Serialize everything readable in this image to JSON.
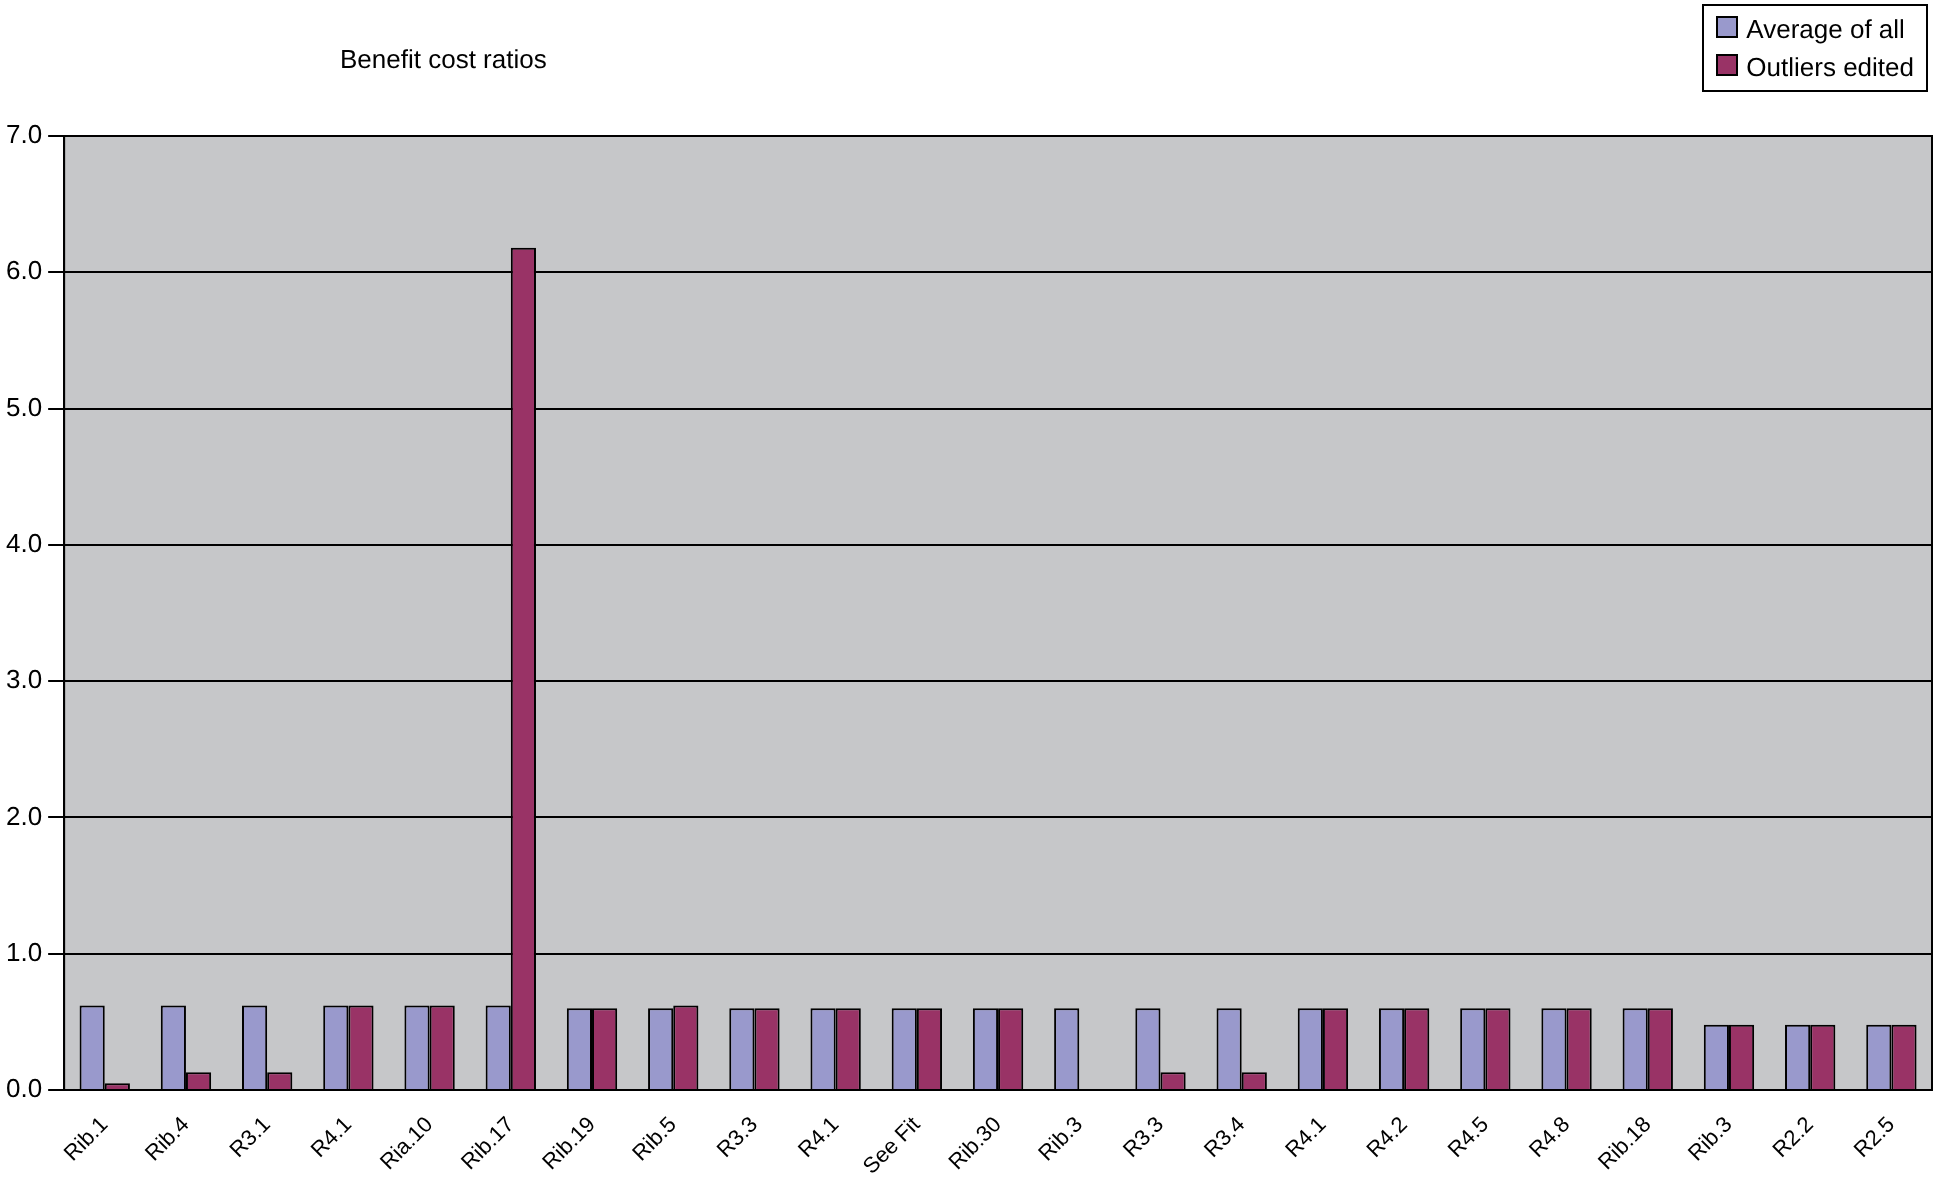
{
  "chart_data": {
    "type": "bar",
    "title": "Benefit cost ratios",
    "categories": [
      "Rib.1",
      "Rib.4",
      "R3.1",
      "R4.1",
      "Ria.10",
      "Rib.17",
      "Rib.19",
      "Rib.5",
      "R3.3",
      "R4.1",
      "See Fit",
      "Rib.30",
      "Rib.3",
      "R3.3",
      "R3.4",
      "R4.1",
      "R4.2",
      "R4.5",
      "R4.8",
      "Rib.18",
      "Rib.3",
      "R2.2",
      "R2.5"
    ],
    "series": [
      {
        "name": "Average of all",
        "color": "#9999cc",
        "values": [
          0.62,
          0.62,
          0.62,
          0.62,
          0.62,
          0.62,
          0.6,
          0.6,
          0.6,
          0.6,
          0.6,
          0.6,
          0.6,
          0.6,
          0.6,
          0.6,
          0.6,
          0.6,
          0.6,
          0.6,
          0.48,
          0.48,
          0.48
        ]
      },
      {
        "name": "Outliers edited",
        "color": "#993366",
        "values": [
          0.05,
          0.13,
          0.13,
          0.62,
          0.62,
          6.18,
          0.6,
          0.62,
          0.6,
          0.6,
          0.6,
          0.6,
          null,
          0.13,
          0.13,
          0.6,
          0.6,
          0.6,
          0.6,
          0.6,
          0.48,
          0.48,
          0.48
        ]
      }
    ],
    "ylim": [
      0,
      7
    ],
    "yticks": [
      {
        "value": 0,
        "label": "0.0"
      },
      {
        "value": 1,
        "label": "1.0"
      },
      {
        "value": 2,
        "label": "2.0"
      },
      {
        "value": 3,
        "label": "3.0"
      },
      {
        "value": 4,
        "label": "4.0"
      },
      {
        "value": 5,
        "label": "5.0"
      },
      {
        "value": 6,
        "label": "6.0"
      },
      {
        "value": 7,
        "label": "7.0"
      }
    ],
    "grid": "y",
    "legend": "top right"
  }
}
